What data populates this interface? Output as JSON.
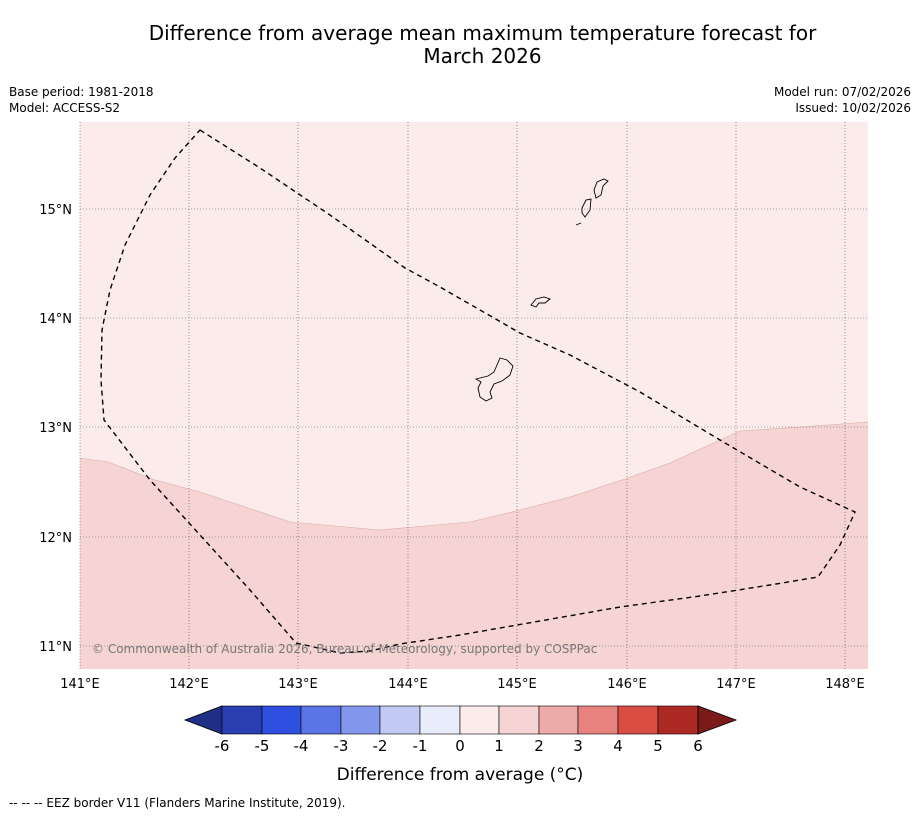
{
  "title_line1": "Difference from average mean maximum temperature forecast for",
  "title_line2": "March 2026",
  "base_period": "Base period: 1981-2018",
  "model": "Model: ACCESS-S2",
  "model_run": "Model run: 07/02/2026",
  "issued": "Issued: 10/02/2026",
  "copyright": "© Commonwealth of Australia 2026, Bureau of Meteorology, supported by COSPPac",
  "lat_labels": [
    "15°N",
    "14°N",
    "13°N",
    "12°N",
    "11°N"
  ],
  "lon_labels": [
    "141°E",
    "142°E",
    "143°E",
    "144°E",
    "145°E",
    "146°E",
    "147°E",
    "148°E"
  ],
  "colorbar": {
    "title": "Difference from average (°C)",
    "ticks": [
      "-6",
      "-5",
      "-4",
      "-3",
      "-2",
      "-1",
      "0",
      "1",
      "2",
      "3",
      "4",
      "5",
      "6"
    ],
    "colors": [
      "#1f2f86",
      "#2a3db3",
      "#2f4fe0",
      "#5a73e6",
      "#8296ec",
      "#c2c9f3",
      "#e8ecfb",
      "#fbeceb",
      "#f5d4d3",
      "#eeaaa8",
      "#e8827f",
      "#db4c43",
      "#ad2923",
      "#7a1b19"
    ]
  },
  "legend_note": "--  --  -- EEZ border V11 (Flanders Marine Institute, 2019).",
  "map_data": {
    "lon_range": [
      141.0,
      148.2
    ],
    "lat_range": [
      10.8,
      15.8
    ],
    "anomaly_categories": [
      {
        "range": "0 to 1",
        "color": "#fbeceb"
      },
      {
        "range": "1 to 2",
        "color": "#f5d4d3"
      }
    ]
  }
}
